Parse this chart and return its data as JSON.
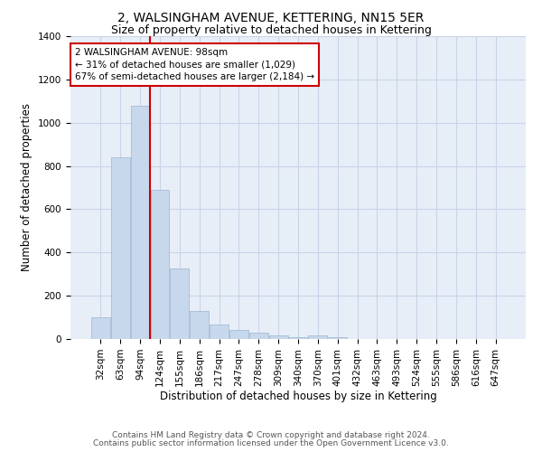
{
  "title": "2, WALSINGHAM AVENUE, KETTERING, NN15 5ER",
  "subtitle": "Size of property relative to detached houses in Kettering",
  "xlabel": "Distribution of detached houses by size in Kettering",
  "ylabel": "Number of detached properties",
  "categories": [
    "32sqm",
    "63sqm",
    "94sqm",
    "124sqm",
    "155sqm",
    "186sqm",
    "217sqm",
    "247sqm",
    "278sqm",
    "309sqm",
    "340sqm",
    "370sqm",
    "401sqm",
    "432sqm",
    "463sqm",
    "493sqm",
    "524sqm",
    "555sqm",
    "586sqm",
    "616sqm",
    "647sqm"
  ],
  "values": [
    100,
    840,
    1080,
    690,
    325,
    130,
    65,
    40,
    30,
    18,
    10,
    15,
    10,
    0,
    0,
    0,
    0,
    0,
    0,
    0,
    0
  ],
  "bar_color": "#c8d8ec",
  "bar_edge_color": "#9ab5d0",
  "vline_color": "#cc0000",
  "vline_x_index": 2.485,
  "annotation_text": "2 WALSINGHAM AVENUE: 98sqm\n← 31% of detached houses are smaller (1,029)\n67% of semi-detached houses are larger (2,184) →",
  "annotation_box_facecolor": "#ffffff",
  "annotation_box_edgecolor": "#cc0000",
  "ylim": [
    0,
    1400
  ],
  "yticks": [
    0,
    200,
    400,
    600,
    800,
    1000,
    1200,
    1400
  ],
  "grid_color": "#c8d4e8",
  "bg_color": "#e8eef8",
  "footer_line1": "Contains HM Land Registry data © Crown copyright and database right 2024.",
  "footer_line2": "Contains public sector information licensed under the Open Government Licence v3.0.",
  "title_fontsize": 10,
  "subtitle_fontsize": 9,
  "axis_label_fontsize": 8.5,
  "tick_fontsize": 7.5,
  "annotation_fontsize": 7.5,
  "footer_fontsize": 6.5
}
